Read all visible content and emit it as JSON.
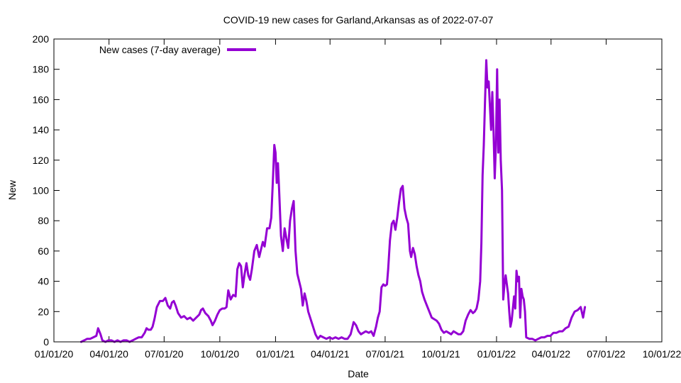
{
  "chart_data": {
    "type": "line",
    "title": "COVID-19 new cases for Garland,Arkansas as of 2022-07-07",
    "xlabel": "Date",
    "ylabel": "New",
    "ylim": [
      0,
      200
    ],
    "yticks": [
      0,
      20,
      40,
      60,
      80,
      100,
      120,
      140,
      160,
      180,
      200
    ],
    "xlim_days": [
      0,
      1004
    ],
    "xticks": [
      {
        "day": 0,
        "label": "01/01/20"
      },
      {
        "day": 91,
        "label": "04/01/20"
      },
      {
        "day": 182,
        "label": "07/01/20"
      },
      {
        "day": 274,
        "label": "10/01/20"
      },
      {
        "day": 366,
        "label": "01/01/21"
      },
      {
        "day": 456,
        "label": "04/01/21"
      },
      {
        "day": 547,
        "label": "07/01/21"
      },
      {
        "day": 639,
        "label": "10/01/21"
      },
      {
        "day": 731,
        "label": "01/01/22"
      },
      {
        "day": 821,
        "label": "04/01/22"
      },
      {
        "day": 912,
        "label": "07/01/22"
      },
      {
        "day": 1004,
        "label": "10/01/22"
      }
    ],
    "colors": {
      "series": "#9400d3",
      "axis": "#000000"
    },
    "legend": {
      "position": "top-left",
      "label": "New cases (7-day average)"
    },
    "series": [
      {
        "name": "New cases (7-day average)",
        "points": [
          [
            45,
            0
          ],
          [
            50,
            1
          ],
          [
            55,
            2
          ],
          [
            60,
            2
          ],
          [
            65,
            3
          ],
          [
            70,
            4
          ],
          [
            73,
            9
          ],
          [
            77,
            5
          ],
          [
            80,
            1
          ],
          [
            85,
            0
          ],
          [
            90,
            1
          ],
          [
            95,
            1
          ],
          [
            100,
            0
          ],
          [
            105,
            1
          ],
          [
            110,
            0
          ],
          [
            115,
            1
          ],
          [
            120,
            1
          ],
          [
            125,
            0
          ],
          [
            130,
            1
          ],
          [
            135,
            2
          ],
          [
            140,
            3
          ],
          [
            145,
            3
          ],
          [
            150,
            6
          ],
          [
            153,
            9
          ],
          [
            156,
            8
          ],
          [
            160,
            8
          ],
          [
            163,
            10
          ],
          [
            166,
            15
          ],
          [
            170,
            23
          ],
          [
            175,
            27
          ],
          [
            180,
            27
          ],
          [
            184,
            29
          ],
          [
            188,
            24
          ],
          [
            192,
            22
          ],
          [
            195,
            26
          ],
          [
            198,
            27
          ],
          [
            201,
            24
          ],
          [
            205,
            19
          ],
          [
            210,
            16
          ],
          [
            215,
            17
          ],
          [
            220,
            15
          ],
          [
            225,
            16
          ],
          [
            230,
            14
          ],
          [
            235,
            16
          ],
          [
            240,
            18
          ],
          [
            243,
            21
          ],
          [
            246,
            22
          ],
          [
            250,
            19
          ],
          [
            255,
            17
          ],
          [
            259,
            14
          ],
          [
            262,
            11
          ],
          [
            266,
            14
          ],
          [
            270,
            18
          ],
          [
            274,
            21
          ],
          [
            278,
            22
          ],
          [
            282,
            22
          ],
          [
            285,
            23
          ],
          [
            288,
            34
          ],
          [
            292,
            28
          ],
          [
            296,
            31
          ],
          [
            300,
            30
          ],
          [
            303,
            48
          ],
          [
            306,
            52
          ],
          [
            309,
            50
          ],
          [
            312,
            36
          ],
          [
            315,
            45
          ],
          [
            318,
            52
          ],
          [
            321,
            44
          ],
          [
            324,
            41
          ],
          [
            327,
            48
          ],
          [
            331,
            60
          ],
          [
            335,
            64
          ],
          [
            339,
            56
          ],
          [
            342,
            61
          ],
          [
            345,
            66
          ],
          [
            348,
            63
          ],
          [
            352,
            75
          ],
          [
            356,
            75
          ],
          [
            359,
            82
          ],
          [
            362,
            110
          ],
          [
            364,
            130
          ],
          [
            366,
            125
          ],
          [
            368,
            105
          ],
          [
            370,
            118
          ],
          [
            372,
            100
          ],
          [
            375,
            70
          ],
          [
            378,
            60
          ],
          [
            381,
            75
          ],
          [
            384,
            68
          ],
          [
            387,
            62
          ],
          [
            390,
            80
          ],
          [
            393,
            88
          ],
          [
            396,
            93
          ],
          [
            399,
            60
          ],
          [
            402,
            45
          ],
          [
            405,
            40
          ],
          [
            408,
            35
          ],
          [
            411,
            24
          ],
          [
            414,
            32
          ],
          [
            417,
            27
          ],
          [
            420,
            20
          ],
          [
            424,
            15
          ],
          [
            428,
            10
          ],
          [
            432,
            5
          ],
          [
            436,
            2
          ],
          [
            440,
            4
          ],
          [
            445,
            3
          ],
          [
            450,
            2
          ],
          [
            455,
            3
          ],
          [
            460,
            2
          ],
          [
            465,
            3
          ],
          [
            470,
            2
          ],
          [
            475,
            3
          ],
          [
            480,
            2
          ],
          [
            485,
            2
          ],
          [
            490,
            5
          ],
          [
            495,
            13
          ],
          [
            499,
            11
          ],
          [
            503,
            7
          ],
          [
            507,
            5
          ],
          [
            511,
            6
          ],
          [
            515,
            7
          ],
          [
            520,
            6
          ],
          [
            524,
            7
          ],
          [
            528,
            4
          ],
          [
            532,
            10
          ],
          [
            535,
            16
          ],
          [
            538,
            20
          ],
          [
            541,
            36
          ],
          [
            544,
            38
          ],
          [
            547,
            37
          ],
          [
            550,
            38
          ],
          [
            552,
            48
          ],
          [
            555,
            67
          ],
          [
            558,
            78
          ],
          [
            561,
            80
          ],
          [
            564,
            74
          ],
          [
            567,
            82
          ],
          [
            570,
            92
          ],
          [
            573,
            101
          ],
          [
            576,
            103
          ],
          [
            579,
            88
          ],
          [
            582,
            82
          ],
          [
            585,
            78
          ],
          [
            588,
            60
          ],
          [
            590,
            56
          ],
          [
            593,
            62
          ],
          [
            596,
            58
          ],
          [
            599,
            50
          ],
          [
            602,
            44
          ],
          [
            605,
            40
          ],
          [
            608,
            33
          ],
          [
            612,
            28
          ],
          [
            616,
            24
          ],
          [
            620,
            20
          ],
          [
            624,
            16
          ],
          [
            628,
            15
          ],
          [
            632,
            14
          ],
          [
            636,
            12
          ],
          [
            640,
            8
          ],
          [
            644,
            6
          ],
          [
            648,
            7
          ],
          [
            652,
            6
          ],
          [
            656,
            5
          ],
          [
            660,
            7
          ],
          [
            664,
            6
          ],
          [
            668,
            5
          ],
          [
            672,
            5
          ],
          [
            676,
            7
          ],
          [
            680,
            14
          ],
          [
            684,
            18
          ],
          [
            688,
            21
          ],
          [
            692,
            19
          ],
          [
            695,
            20
          ],
          [
            698,
            22
          ],
          [
            701,
            28
          ],
          [
            704,
            40
          ],
          [
            706,
            65
          ],
          [
            708,
            110
          ],
          [
            710,
            130
          ],
          [
            712,
            160
          ],
          [
            714,
            186
          ],
          [
            716,
            168
          ],
          [
            718,
            172
          ],
          [
            720,
            156
          ],
          [
            722,
            140
          ],
          [
            724,
            165
          ],
          [
            726,
            140
          ],
          [
            728,
            108
          ],
          [
            730,
            130
          ],
          [
            732,
            180
          ],
          [
            734,
            125
          ],
          [
            736,
            160
          ],
          [
            738,
            120
          ],
          [
            740,
            100
          ],
          [
            742,
            28
          ],
          [
            744,
            38
          ],
          [
            746,
            44
          ],
          [
            748,
            38
          ],
          [
            750,
            32
          ],
          [
            752,
            20
          ],
          [
            754,
            10
          ],
          [
            756,
            14
          ],
          [
            758,
            22
          ],
          [
            760,
            30
          ],
          [
            762,
            22
          ],
          [
            764,
            47
          ],
          [
            766,
            40
          ],
          [
            768,
            43
          ],
          [
            770,
            16
          ],
          [
            772,
            35
          ],
          [
            774,
            30
          ],
          [
            776,
            28
          ],
          [
            778,
            20
          ],
          [
            780,
            3
          ],
          [
            785,
            2
          ],
          [
            790,
            2
          ],
          [
            795,
            1
          ],
          [
            800,
            2
          ],
          [
            805,
            3
          ],
          [
            810,
            3
          ],
          [
            815,
            4
          ],
          [
            820,
            4
          ],
          [
            825,
            6
          ],
          [
            830,
            6
          ],
          [
            835,
            7
          ],
          [
            840,
            7
          ],
          [
            845,
            9
          ],
          [
            850,
            10
          ],
          [
            855,
            16
          ],
          [
            860,
            20
          ],
          [
            865,
            21
          ],
          [
            870,
            23
          ],
          [
            874,
            16
          ],
          [
            877,
            23
          ]
        ]
      }
    ]
  }
}
